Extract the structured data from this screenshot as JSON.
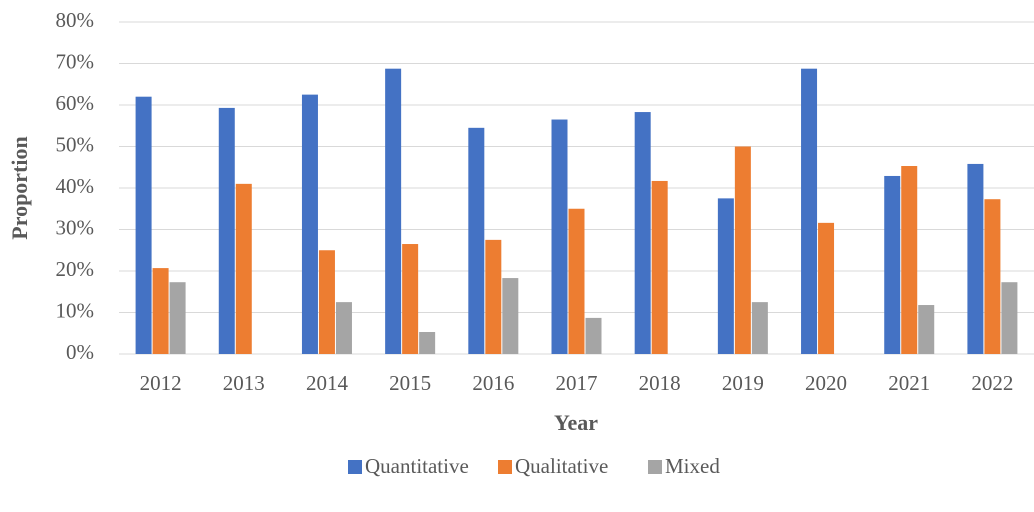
{
  "chart_data": {
    "type": "bar",
    "x_label": "Year",
    "y_label": "Proportion",
    "categories": [
      "2012",
      "2013",
      "2014",
      "2015",
      "2016",
      "2017",
      "2018",
      "2019",
      "2020",
      "2021",
      "2022"
    ],
    "series": [
      {
        "name": "Quantitative",
        "color": "#4472c4",
        "values": [
          62,
          59.3,
          62.5,
          68.75,
          54.5,
          56.5,
          58.3,
          37.5,
          68.75,
          42.9,
          45.8
        ]
      },
      {
        "name": "Qualitative",
        "color": "#ed7d31",
        "values": [
          20.7,
          41,
          25,
          26.5,
          27.5,
          35,
          41.7,
          50,
          31.6,
          45.3,
          37.3
        ]
      },
      {
        "name": "Mixed",
        "color": "#a5a5a5",
        "values": [
          17.3,
          0,
          12.5,
          5.3,
          18.3,
          8.7,
          0,
          12.5,
          0,
          11.8,
          17.3
        ]
      }
    ],
    "ylim": [
      0,
      80
    ],
    "yticks": [
      {
        "value": 0,
        "label": "0%"
      },
      {
        "value": 10,
        "label": "10%"
      },
      {
        "value": 20,
        "label": "20%"
      },
      {
        "value": 30,
        "label": "30%"
      },
      {
        "value": 40,
        "label": "40%"
      },
      {
        "value": 50,
        "label": "50%"
      },
      {
        "value": 60,
        "label": "60%"
      },
      {
        "value": 70,
        "label": "70%"
      },
      {
        "value": 80,
        "label": "80%"
      }
    ],
    "grid": true,
    "legend": "bottom"
  }
}
